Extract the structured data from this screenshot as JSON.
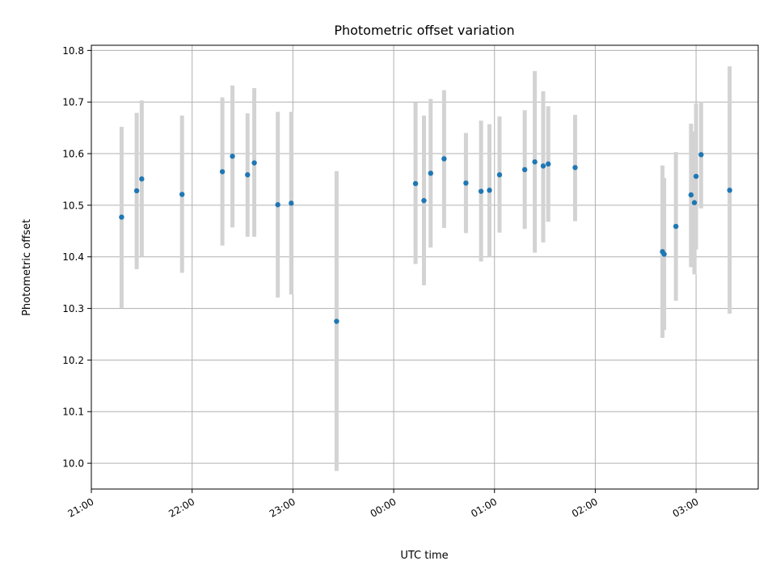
{
  "chart_data": {
    "type": "scatter",
    "title": "Photometric offset variation",
    "xlabel": "UTC time",
    "ylabel": "Photometric offset",
    "grid": true,
    "x_scale": "time",
    "xlim": [
      "21:00",
      "03:37"
    ],
    "ylim": [
      9.95,
      10.81
    ],
    "x_ticks": [
      "21:00",
      "22:00",
      "23:00",
      "00:00",
      "01:00",
      "02:00",
      "03:00"
    ],
    "y_ticks": [
      10.0,
      10.1,
      10.2,
      10.3,
      10.4,
      10.5,
      10.6,
      10.7,
      10.8
    ],
    "colors": {
      "points": "#1f77b4",
      "error_bars": "#d3d3d3",
      "grid": "#b0b0b0"
    },
    "points": [
      {
        "x": "21:18",
        "y": 10.477,
        "ylow": 10.301,
        "yhigh": 10.652
      },
      {
        "x": "21:27",
        "y": 10.528,
        "ylow": 10.376,
        "yhigh": 10.679
      },
      {
        "x": "21:30",
        "y": 10.551,
        "ylow": 10.4,
        "yhigh": 10.703
      },
      {
        "x": "21:54",
        "y": 10.521,
        "ylow": 10.369,
        "yhigh": 10.674
      },
      {
        "x": "22:18",
        "y": 10.565,
        "ylow": 10.422,
        "yhigh": 10.709
      },
      {
        "x": "22:24",
        "y": 10.595,
        "ylow": 10.457,
        "yhigh": 10.732
      },
      {
        "x": "22:33",
        "y": 10.559,
        "ylow": 10.439,
        "yhigh": 10.678
      },
      {
        "x": "22:37",
        "y": 10.582,
        "ylow": 10.439,
        "yhigh": 10.727
      },
      {
        "x": "22:51",
        "y": 10.501,
        "ylow": 10.321,
        "yhigh": 10.681
      },
      {
        "x": "22:59",
        "y": 10.504,
        "ylow": 10.327,
        "yhigh": 10.681
      },
      {
        "x": "23:26",
        "y": 10.275,
        "ylow": 9.985,
        "yhigh": 10.566
      },
      {
        "x": "00:13",
        "y": 10.542,
        "ylow": 10.386,
        "yhigh": 10.699
      },
      {
        "x": "00:18",
        "y": 10.509,
        "ylow": 10.345,
        "yhigh": 10.674
      },
      {
        "x": "00:22",
        "y": 10.562,
        "ylow": 10.418,
        "yhigh": 10.706
      },
      {
        "x": "00:30",
        "y": 10.59,
        "ylow": 10.456,
        "yhigh": 10.723
      },
      {
        "x": "00:43",
        "y": 10.543,
        "ylow": 10.446,
        "yhigh": 10.64
      },
      {
        "x": "00:52",
        "y": 10.527,
        "ylow": 10.391,
        "yhigh": 10.664
      },
      {
        "x": "00:57",
        "y": 10.529,
        "ylow": 10.4,
        "yhigh": 10.657
      },
      {
        "x": "01:03",
        "y": 10.559,
        "ylow": 10.447,
        "yhigh": 10.672
      },
      {
        "x": "01:18",
        "y": 10.569,
        "ylow": 10.454,
        "yhigh": 10.684
      },
      {
        "x": "01:24",
        "y": 10.584,
        "ylow": 10.408,
        "yhigh": 10.76
      },
      {
        "x": "01:29",
        "y": 10.576,
        "ylow": 10.428,
        "yhigh": 10.721
      },
      {
        "x": "01:32",
        "y": 10.58,
        "ylow": 10.468,
        "yhigh": 10.692
      },
      {
        "x": "01:48",
        "y": 10.573,
        "ylow": 10.469,
        "yhigh": 10.675
      },
      {
        "x": "02:40",
        "y": 10.41,
        "ylow": 10.243,
        "yhigh": 10.577
      },
      {
        "x": "02:41",
        "y": 10.405,
        "ylow": 10.258,
        "yhigh": 10.553
      },
      {
        "x": "02:48",
        "y": 10.459,
        "ylow": 10.315,
        "yhigh": 10.603
      },
      {
        "x": "02:57",
        "y": 10.52,
        "ylow": 10.38,
        "yhigh": 10.658
      },
      {
        "x": "02:59",
        "y": 10.505,
        "ylow": 10.366,
        "yhigh": 10.643
      },
      {
        "x": "03:00",
        "y": 10.556,
        "ylow": 10.414,
        "yhigh": 10.697
      },
      {
        "x": "03:03",
        "y": 10.598,
        "ylow": 10.494,
        "yhigh": 10.701
      },
      {
        "x": "03:20",
        "y": 10.529,
        "ylow": 10.29,
        "yhigh": 10.769
      }
    ]
  }
}
